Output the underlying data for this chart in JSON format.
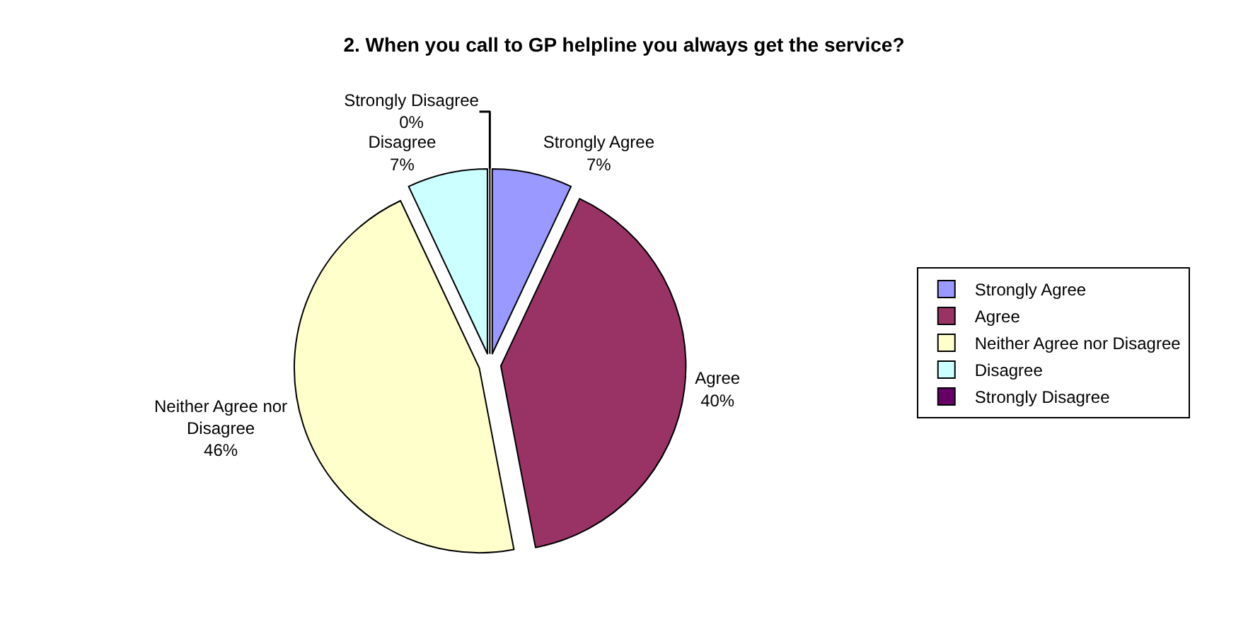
{
  "chart_data": {
    "type": "pie",
    "title": "2. When you call to GP helpline you always get the service?",
    "categories": [
      "Strongly Agree",
      "Agree",
      "Neither Agree nor Disagree",
      "Disagree",
      "Strongly Disagree"
    ],
    "values": [
      7,
      40,
      46,
      7,
      0
    ],
    "value_labels": [
      "7%",
      "40%",
      "46%",
      "7%",
      "0%"
    ],
    "colors": [
      "#9999ff",
      "#993366",
      "#ffffcc",
      "#ccffff",
      "#660066"
    ],
    "legend": "right"
  }
}
